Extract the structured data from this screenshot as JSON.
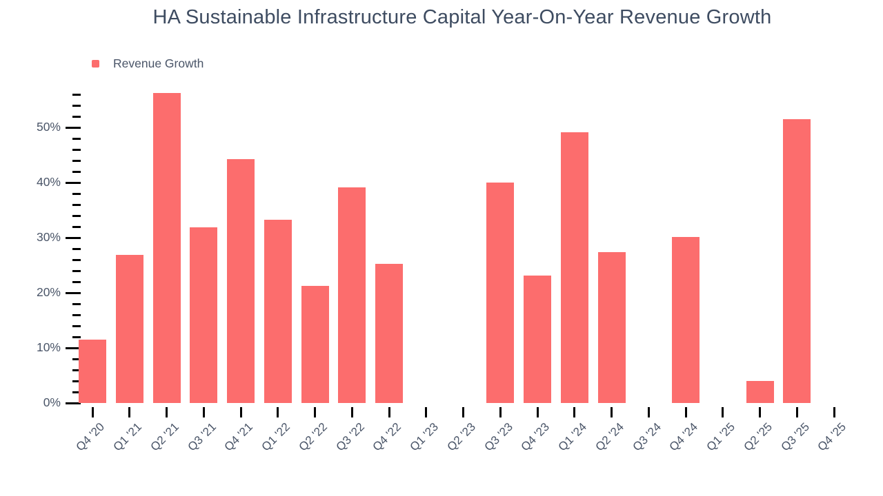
{
  "title": "HA Sustainable Infrastructure Capital Year-On-Year Revenue Growth",
  "legend": {
    "label": "Revenue Growth"
  },
  "colors": {
    "bar": "#fc6d6d",
    "title_text": "#3e4c61",
    "axis_text": "#4a5568",
    "tick": "#000000",
    "background": "#ffffff"
  },
  "chart_data": {
    "type": "bar",
    "title": "HA Sustainable Infrastructure Capital Year-On-Year Revenue Growth",
    "categories": [
      "Q4 '20",
      "Q1 '21",
      "Q2 '21",
      "Q3 '21",
      "Q4 '21",
      "Q1 '22",
      "Q2 '22",
      "Q3 '22",
      "Q4 '22",
      "Q1 '23",
      "Q2 '23",
      "Q3 '23",
      "Q4 '23",
      "Q1 '24",
      "Q2 '24",
      "Q3 '24",
      "Q4 '24",
      "Q1 '25",
      "Q2 '25",
      "Q3 '25",
      "Q4 '25"
    ],
    "series": [
      {
        "name": "Revenue Growth",
        "values": [
          11.5,
          26.9,
          56.3,
          31.9,
          44.2,
          33.2,
          21.2,
          39.1,
          25.3,
          null,
          null,
          40.0,
          23.1,
          49.1,
          27.4,
          null,
          30.1,
          null,
          4.0,
          51.5,
          null
        ]
      }
    ],
    "unit": "%",
    "xlabel": "",
    "ylabel": "",
    "ylim": [
      0,
      56
    ],
    "y_major_ticks": [
      0,
      10,
      20,
      30,
      40,
      50
    ],
    "y_major_tick_labels": [
      "0%",
      "10%",
      "20%",
      "30%",
      "40%",
      "50%"
    ],
    "y_minor_tick_step": 2,
    "grid": false,
    "legend_entries": [
      "Revenue Growth"
    ],
    "legend_position": "top-left",
    "bar_color": "#fc6d6d",
    "missing_quarters": [
      "Q1 '23",
      "Q2 '23",
      "Q3 '24",
      "Q1 '25",
      "Q4 '25"
    ]
  }
}
